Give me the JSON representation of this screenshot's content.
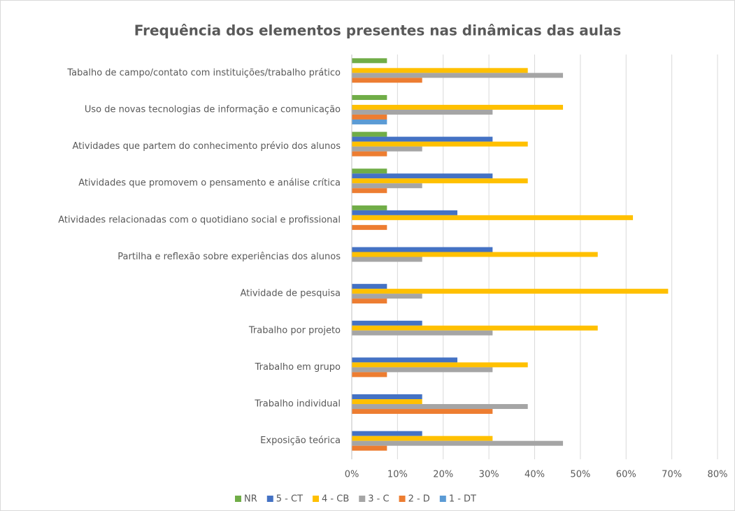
{
  "chart_data": {
    "type": "hbar",
    "title": "Frequência dos elementos presentes nas dinâmicas das aulas",
    "categories": [
      "Tabalho de campo/contato com instituições/trabalho prático",
      "Uso de novas tecnologias de informação e comunicação",
      "Atividades que partem do conhecimento prévio dos alunos",
      "Atividades que promovem o pensamento e análise crítica",
      "Atividades relacionadas com o quotidiano social e profissional",
      "Partilha e reflexão sobre experiências dos alunos",
      "Atividade de pesquisa",
      "Trabalho por projeto",
      "Trabalho em grupo",
      "Trabalho individual",
      "Exposição teórica"
    ],
    "series": [
      {
        "name": "NR",
        "color": "#70ad47",
        "values": [
          7.7,
          7.7,
          7.7,
          7.7,
          7.7,
          0,
          0,
          0,
          0,
          0,
          0
        ]
      },
      {
        "name": "5 - CT",
        "color": "#4472c4",
        "values": [
          0,
          0,
          30.8,
          30.8,
          23.1,
          30.8,
          7.7,
          15.4,
          23.1,
          15.4,
          15.4
        ]
      },
      {
        "name": "4 - CB",
        "color": "#ffc000",
        "values": [
          38.5,
          46.2,
          38.5,
          38.5,
          61.5,
          53.8,
          69.2,
          53.8,
          38.5,
          15.4,
          30.8
        ]
      },
      {
        "name": "3 - C",
        "color": "#a5a5a5",
        "values": [
          46.2,
          30.8,
          15.4,
          15.4,
          0,
          15.4,
          15.4,
          30.8,
          30.8,
          38.5,
          46.2
        ]
      },
      {
        "name": "2 - D",
        "color": "#ed7d31",
        "values": [
          15.4,
          7.7,
          7.7,
          7.7,
          7.7,
          0,
          7.7,
          0,
          7.7,
          30.8,
          7.7
        ]
      },
      {
        "name": "1 - DT",
        "color": "#5b9bd5",
        "values": [
          0,
          7.7,
          0,
          0,
          0,
          0,
          0,
          0,
          0,
          0,
          0
        ]
      }
    ],
    "xlim": [
      0,
      80
    ],
    "xticks": [
      {
        "value": 0,
        "label": "0%"
      },
      {
        "value": 10,
        "label": "10%"
      },
      {
        "value": 20,
        "label": "20%"
      },
      {
        "value": 30,
        "label": "30%"
      },
      {
        "value": 40,
        "label": "40%"
      },
      {
        "value": 50,
        "label": "50%"
      },
      {
        "value": 60,
        "label": "60%"
      },
      {
        "value": 70,
        "label": "70%"
      },
      {
        "value": 80,
        "label": "80%"
      }
    ],
    "grid": true
  }
}
